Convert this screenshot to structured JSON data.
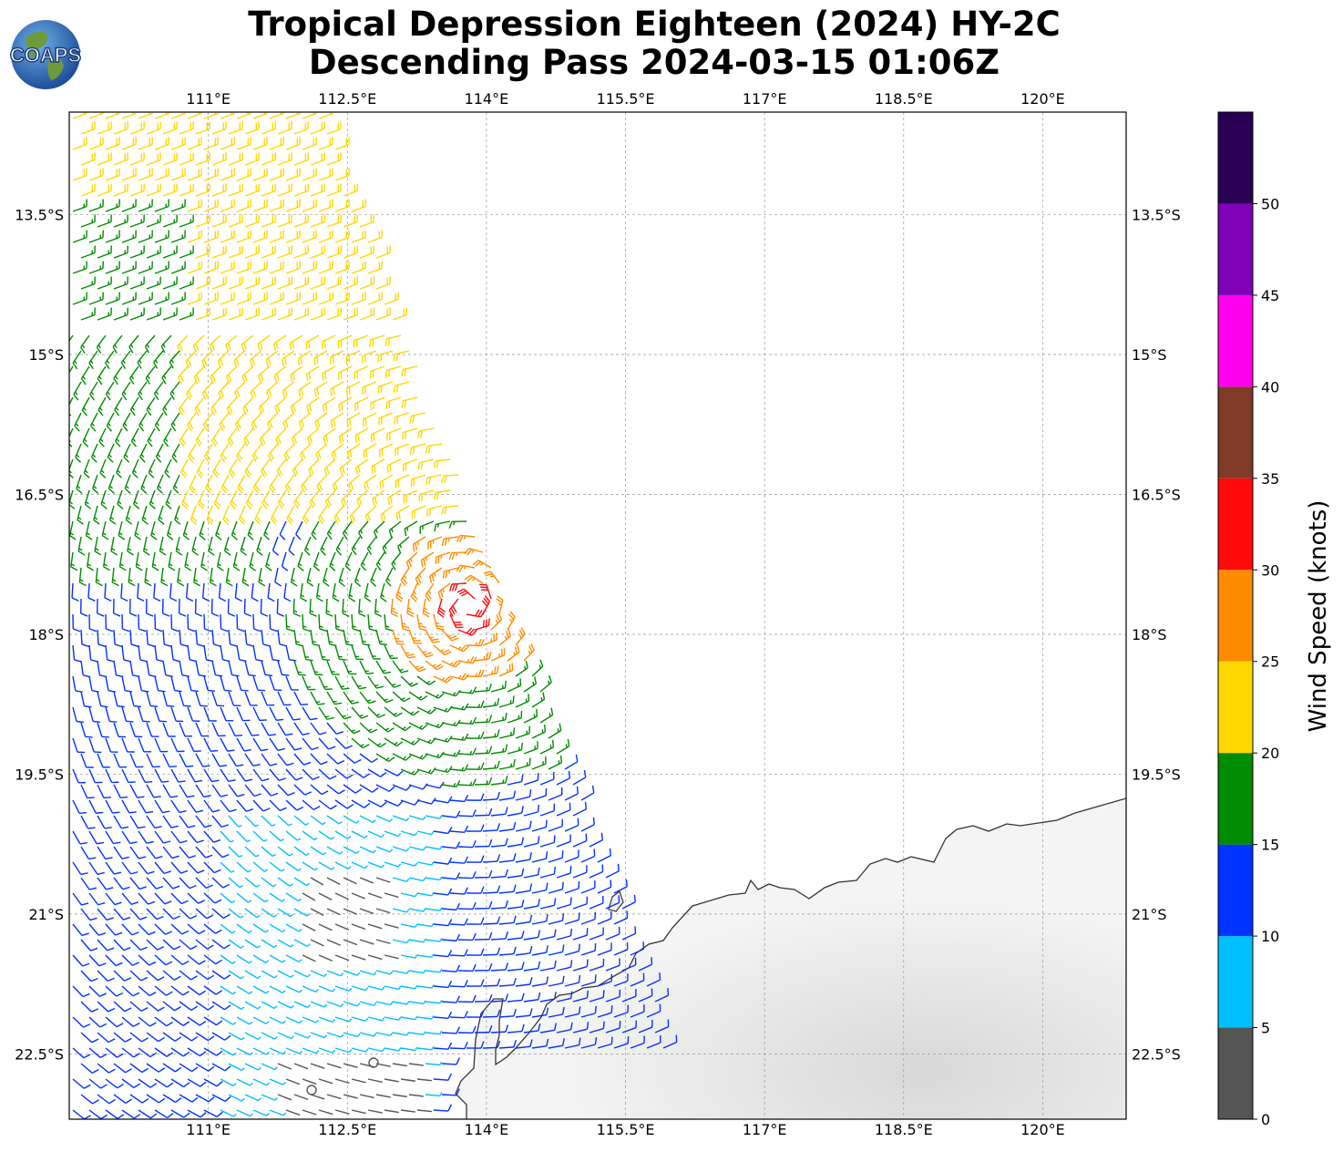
{
  "title": {
    "line1": "Tropical Depression Eighteen (2024) HY-2C",
    "line2": "Descending Pass 2024-03-15 01:06Z"
  },
  "logo": {
    "text": "COAPS",
    "icon": "globe-logo-icon"
  },
  "map": {
    "lon_range": [
      109.5,
      120.9
    ],
    "lat_range": [
      -23.2,
      -12.4
    ],
    "lon_ticks": [
      {
        "value": 111.0,
        "label": "111°E"
      },
      {
        "value": 112.5,
        "label": "112.5°E"
      },
      {
        "value": 114.0,
        "label": "114°E"
      },
      {
        "value": 115.5,
        "label": "115.5°E"
      },
      {
        "value": 117.0,
        "label": "117°E"
      },
      {
        "value": 118.5,
        "label": "118.5°E"
      },
      {
        "value": 120.0,
        "label": "120°E"
      }
    ],
    "lat_ticks": [
      {
        "value": -13.5,
        "label": "13.5°S"
      },
      {
        "value": -15.0,
        "label": "15°S"
      },
      {
        "value": -16.5,
        "label": "16.5°S"
      },
      {
        "value": -18.0,
        "label": "18°S"
      },
      {
        "value": -19.5,
        "label": "19.5°S"
      },
      {
        "value": -21.0,
        "label": "21°S"
      },
      {
        "value": -22.5,
        "label": "22.5°S"
      }
    ],
    "gridlines": true,
    "land_color": "#f0f0f0",
    "coast_color": "#333333",
    "storm_center": {
      "lon": 113.8,
      "lat": -17.7
    }
  },
  "colorbar": {
    "label": "Wind Speed (knots)",
    "range": [
      0,
      55
    ],
    "bins": [
      {
        "min": 0,
        "max": 5,
        "color": "#555555"
      },
      {
        "min": 5,
        "max": 10,
        "color": "#00bfff"
      },
      {
        "min": 10,
        "max": 15,
        "color": "#0033ff"
      },
      {
        "min": 15,
        "max": 20,
        "color": "#008c00"
      },
      {
        "min": 20,
        "max": 25,
        "color": "#ffd700"
      },
      {
        "min": 25,
        "max": 30,
        "color": "#ff8c00"
      },
      {
        "min": 30,
        "max": 35,
        "color": "#ff0a0a"
      },
      {
        "min": 35,
        "max": 40,
        "color": "#7f3a28"
      },
      {
        "min": 40,
        "max": 45,
        "color": "#ff00ee"
      },
      {
        "min": 45,
        "max": 50,
        "color": "#8000b8"
      },
      {
        "min": 50,
        "max": 55,
        "color": "#2a0055"
      }
    ],
    "ticks": [
      "0",
      "5",
      "10",
      "15",
      "20",
      "25",
      "30",
      "35",
      "40",
      "45",
      "50"
    ]
  }
}
